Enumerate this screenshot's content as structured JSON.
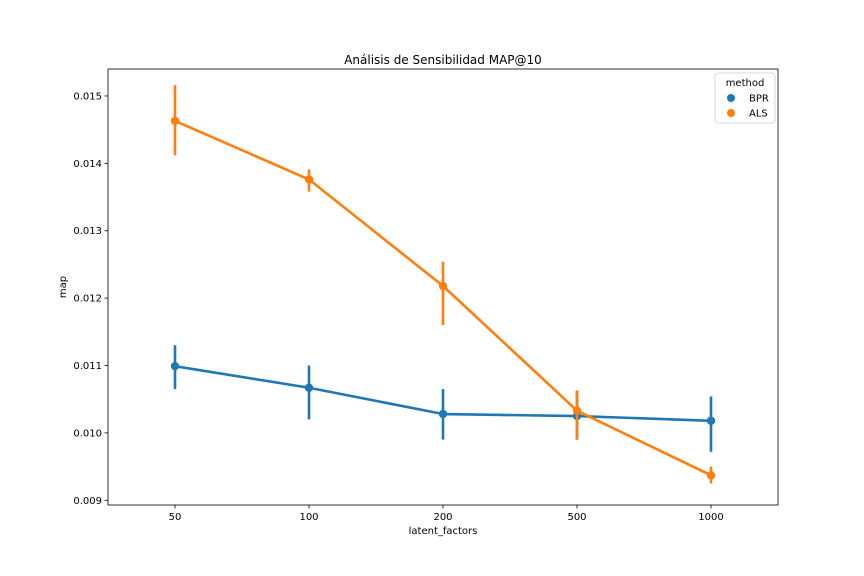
{
  "chart_data": {
    "type": "line",
    "title": "Análisis de Sensibilidad MAP@10",
    "xlabel": "latent_factors",
    "ylabel": "map",
    "categories": [
      "50",
      "100",
      "200",
      "500",
      "1000"
    ],
    "ylim": [
      0.00893,
      0.0154
    ],
    "yticks": [
      0.009,
      0.01,
      0.011,
      0.012,
      0.013,
      0.014,
      0.015
    ],
    "ytick_labels": [
      "0.009",
      "0.010",
      "0.011",
      "0.012",
      "0.013",
      "0.014",
      "0.015"
    ],
    "grid": false,
    "legend": {
      "title": "method",
      "position": "top-right"
    },
    "series": [
      {
        "name": "BPR",
        "color": "#1f77b4",
        "values": [
          0.01099,
          0.01067,
          0.01028,
          0.01025,
          0.01018
        ],
        "err_low": [
          0.01065,
          0.0102,
          0.0099,
          0.0099,
          0.00972
        ],
        "err_high": [
          0.0113,
          0.011,
          0.01065,
          0.01062,
          0.01054
        ]
      },
      {
        "name": "ALS",
        "color": "#ff7f0e",
        "values": [
          0.01463,
          0.01376,
          0.01218,
          0.01033,
          0.00937
        ],
        "err_low": [
          0.01412,
          0.01358,
          0.0116,
          0.0099,
          0.00925
        ],
        "err_high": [
          0.01516,
          0.01391,
          0.01254,
          0.01063,
          0.0095
        ]
      }
    ]
  }
}
